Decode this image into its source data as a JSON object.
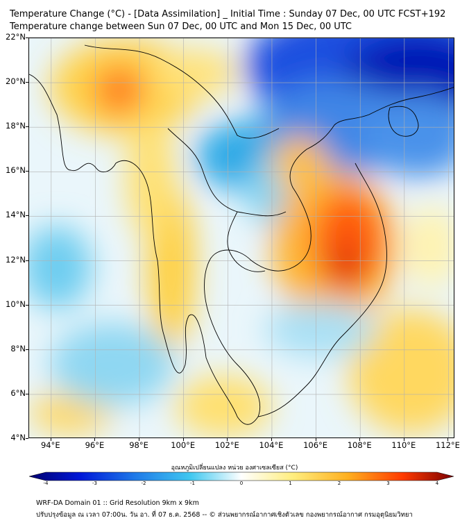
{
  "header": {
    "title_line1": "Temperature Change (°C) - [Data Assimilation] _ Initial Time : Sunday 07 Dec, 00 UTC FCST+192",
    "title_line2": "Temperature change between Sun 07 Dec, 00 UTC and Mon 15 Dec, 00 UTC"
  },
  "map": {
    "lat_labels": [
      "22°N",
      "20°N",
      "18°N",
      "16°N",
      "14°N",
      "12°N",
      "10°N",
      "8°N",
      "6°N",
      "4°N"
    ],
    "lon_labels": [
      "94°E",
      "96°E",
      "98°E",
      "100°E",
      "102°E",
      "104°E",
      "106°E",
      "108°E",
      "110°E",
      "112°E"
    ],
    "lat_range": [
      4,
      22
    ],
    "lon_range": [
      93,
      112.3
    ],
    "colors": {
      "cold": "#0000cc",
      "neutral": "#ffffff",
      "warm": "#ff3300",
      "border": "#000000",
      "grid": "#b0b0b0"
    }
  },
  "colorbar": {
    "title": "อุณหภูมิเปลี่ยนแปลง หน่วย องศาเซลเซียส (°C)",
    "ticks": [
      "-4",
      "-3",
      "-2",
      "-1",
      "0",
      "1",
      "2",
      "3",
      "4"
    ],
    "range": [
      -4,
      4
    ]
  },
  "footer": {
    "line1": "WRF-DA Domain 01 :: Grid Resolution 9km x 9km",
    "line2": "ปรับปรุงข้อมูล ณ เวลา 07:00น. วัน อา. ที่ 07 ธ.ค. 2568 -- © ส่วนพยากรณ์อากาศเชิงตัวเลข กองพยากรณ์อากาศ กรมอุตุนิยมวิทยา"
  }
}
